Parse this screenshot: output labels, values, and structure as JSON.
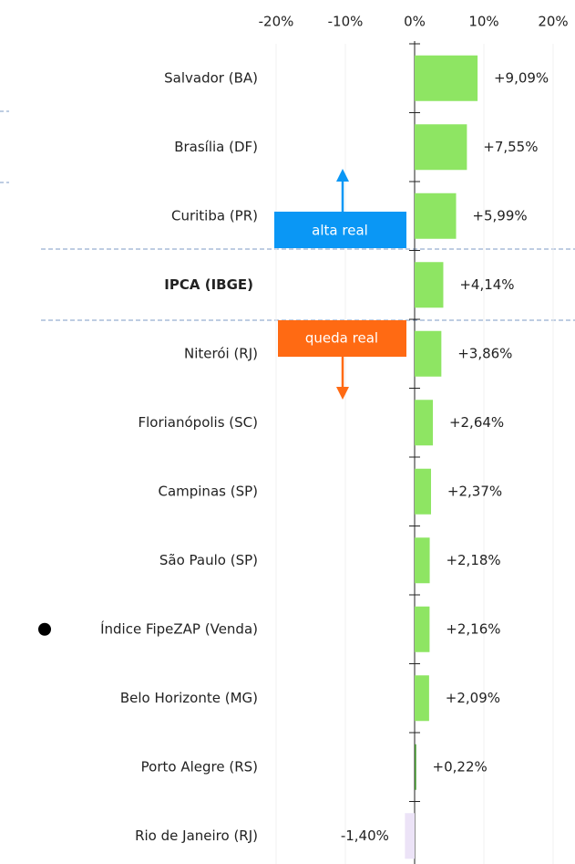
{
  "chart_data": {
    "type": "bar",
    "orientation": "horizontal",
    "categories": [
      "Salvador (BA)",
      "Brasília (DF)",
      "Curitiba (PR)",
      "IPCA (IBGE)",
      "Niterói (RJ)",
      "Florianópolis (SC)",
      "Campinas (SP)",
      "São Paulo (SP)",
      "Índice FipeZAP (Venda)",
      "Belo Horizonte (MG)",
      "Porto Alegre (RS)",
      "Rio de Janeiro (RJ)"
    ],
    "values": [
      9.09,
      7.55,
      5.99,
      4.14,
      3.86,
      2.64,
      2.37,
      2.18,
      2.16,
      2.09,
      0.22,
      -1.4
    ],
    "value_labels": [
      "+9,09%",
      "+7,55%",
      "+5,99%",
      "+4,14%",
      "+3,86%",
      "+2,64%",
      "+2,37%",
      "+2,18%",
      "+2,16%",
      "+2,09%",
      "+0,22%",
      "-1,40%"
    ],
    "colors": [
      "#8ee563",
      "#8ee563",
      "#8ee563",
      "#8ee563",
      "#8ee563",
      "#8ee563",
      "#8ee563",
      "#8ee563",
      "#8ee563",
      "#8ee563",
      "#3f8f2a",
      "#ece3f7"
    ],
    "xlim": [
      -20,
      20
    ],
    "xticks": [
      {
        "value": -20,
        "label": "-20%"
      },
      {
        "value": -10,
        "label": "-10%"
      },
      {
        "value": 0,
        "label": "0%"
      },
      {
        "value": 10,
        "label": "10%"
      },
      {
        "value": 20,
        "label": "20%"
      }
    ],
    "grid": true,
    "annotations": {
      "up": "alta real",
      "down": "queda real"
    }
  }
}
